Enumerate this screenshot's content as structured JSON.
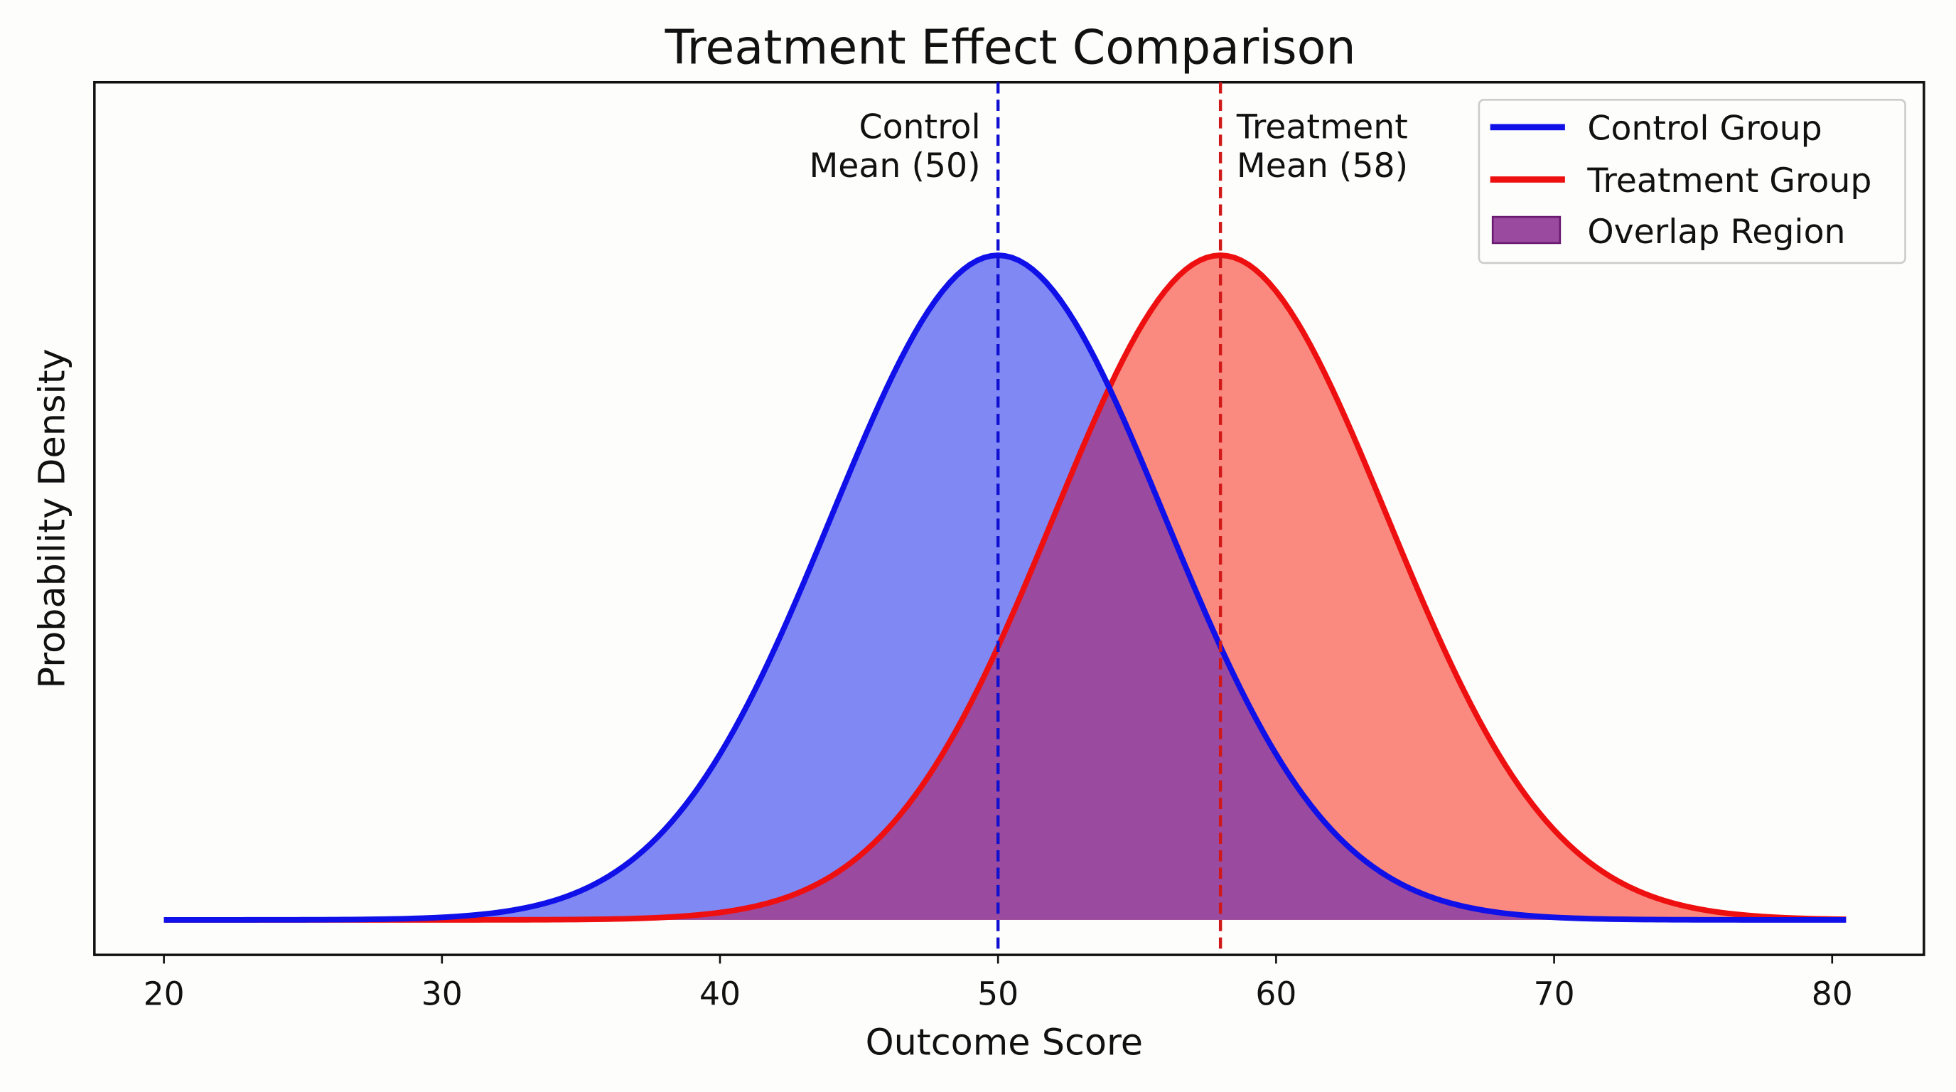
{
  "chart_data": {
    "type": "area",
    "title": "Treatment Effect Comparison",
    "xlabel": "Outcome Score",
    "ylabel": "Probability Density",
    "xlim": [
      17.5,
      83.3
    ],
    "x_range": [
      20,
      80.5
    ],
    "xticks": [
      20,
      30,
      40,
      50,
      60,
      70,
      80
    ],
    "ylim": [
      -0.0035,
      0.0838
    ],
    "yticks": [],
    "grid": false,
    "legend_position": "top-right",
    "series": [
      {
        "name": "Control Group",
        "distribution": "normal",
        "mean": 50,
        "sd": 6,
        "color": "#1010e8",
        "fill": "#8088f4"
      },
      {
        "name": "Treatment Group",
        "distribution": "normal",
        "mean": 58,
        "sd": 6,
        "color": "#ee1010",
        "fill": "#fa8a80"
      }
    ],
    "overlap": {
      "name": "Overlap Region",
      "fill": "#9a4a9f",
      "edge": "#6a1a70"
    },
    "annotations": [
      {
        "lines": [
          "Control",
          "Mean (50)"
        ],
        "x": 50,
        "color": "#1010d0"
      },
      {
        "lines": [
          "Treatment",
          "Mean (58)"
        ],
        "x": 58,
        "color": "#d01818"
      }
    ]
  }
}
